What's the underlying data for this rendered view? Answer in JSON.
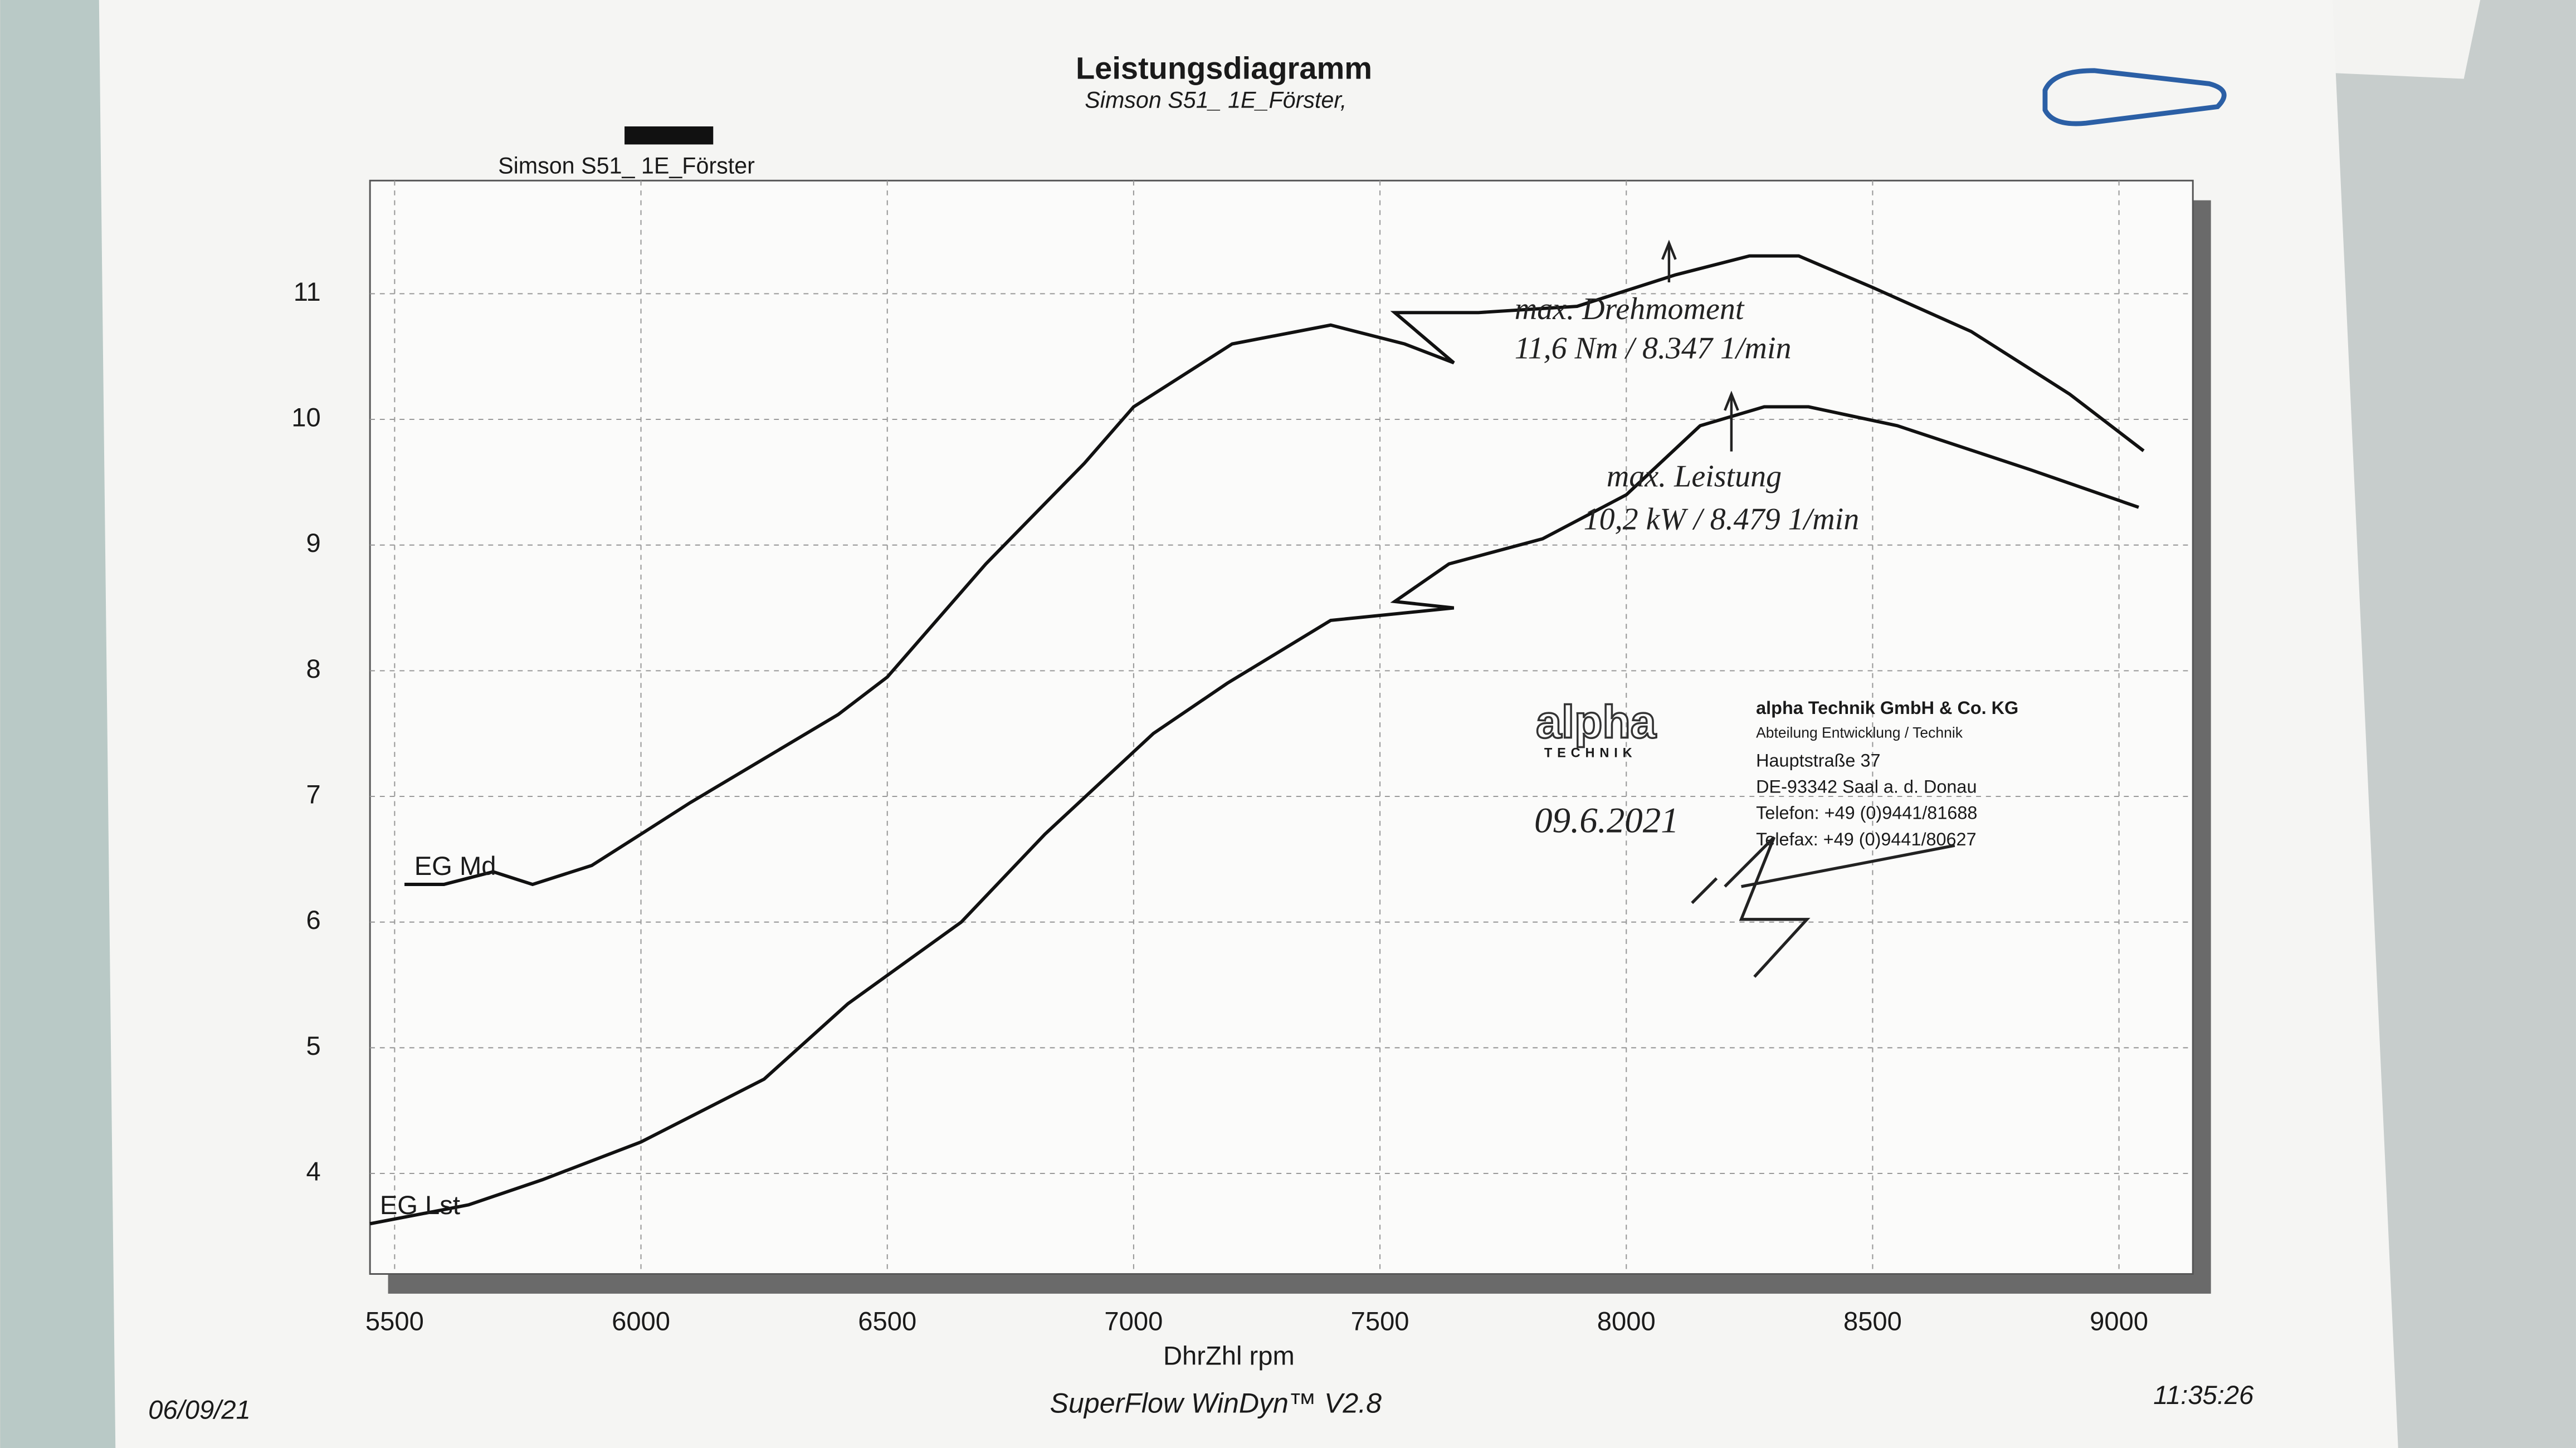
{
  "chart_data": {
    "type": "line",
    "title": "Leistungsdiagramm",
    "subtitle": "Simson S51_ 1E_Förster,",
    "legend_label": "Simson S51_ 1E_Förster",
    "x_label": "DhrZhl rpm",
    "footer_left": "06/09/21",
    "footer_center": "SuperFlow WinDyn™ V2.8",
    "footer_right": "11:35:26",
    "xlim": [
      5450,
      9150
    ],
    "xticks": [
      5500,
      6000,
      6500,
      7000,
      7500,
      8000,
      8500,
      9000
    ],
    "ylim": [
      3.2,
      11.9
    ],
    "yticks": [
      4,
      5,
      6,
      7,
      8,
      9,
      10,
      11
    ],
    "grid": true,
    "series": [
      {
        "name": "EG Md",
        "color": "#111111",
        "x": [
          5520,
          5600,
          5700,
          5780,
          5900,
          6000,
          6100,
          6250,
          6400,
          6500,
          6700,
          6900,
          7000,
          7200,
          7400,
          7550,
          7650,
          7530,
          7700,
          7900,
          8100,
          8250,
          8350,
          8500,
          8700,
          8900,
          9050
        ],
        "values": [
          6.3,
          6.3,
          6.4,
          6.3,
          6.45,
          6.7,
          6.95,
          7.3,
          7.65,
          7.95,
          8.85,
          9.65,
          10.1,
          10.6,
          10.75,
          10.6,
          10.45,
          10.85,
          10.85,
          10.9,
          11.15,
          11.3,
          11.3,
          11.05,
          10.7,
          10.2,
          9.75
        ]
      },
      {
        "name": "EG Lst",
        "color": "#111111",
        "x": [
          5450,
          5650,
          5800,
          6000,
          6250,
          6420,
          6650,
          6820,
          7040,
          7190,
          7400,
          7650,
          7530,
          7640,
          7830,
          8000,
          8150,
          8280,
          8370,
          8550,
          8820,
          9040
        ],
        "values": [
          3.6,
          3.75,
          3.95,
          4.25,
          4.75,
          5.35,
          6.0,
          6.7,
          7.5,
          7.9,
          8.4,
          8.5,
          8.55,
          8.85,
          9.05,
          9.4,
          9.95,
          10.1,
          10.1,
          9.95,
          9.6,
          9.3
        ]
      }
    ],
    "annotations": [
      "max. Drehmoment",
      "11,6 Nm / 8.347 1/min",
      "max. Leistung",
      "10,2 kW / 8.479 1/min",
      "09.6.2021"
    ],
    "stamp": [
      "alpha",
      "TECHNIK",
      "alpha Technik GmbH & Co. KG",
      "Abteilung Entwicklung / Technik",
      "Hauptstraße 37",
      "DE-93342 Saal a. d. Donau",
      "Telefon: +49 (0)9441/81688",
      "Telefax: +49 (0)9441/80627"
    ]
  }
}
